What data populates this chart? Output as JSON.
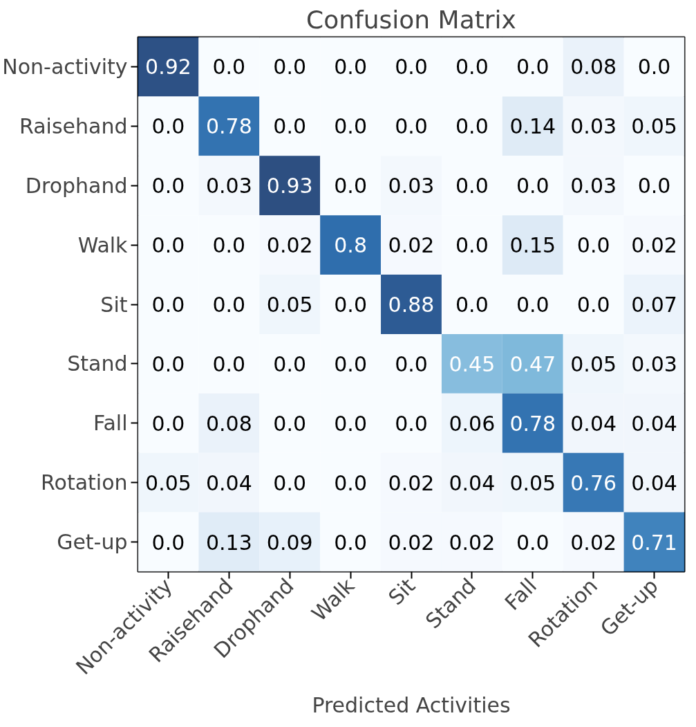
{
  "chart_data": {
    "type": "heatmap",
    "title": "Confusion Matrix",
    "xlabel": "Predicted Activities",
    "categories": [
      "Non-activity",
      "Raisehand",
      "Drophand",
      "Walk",
      "Sit",
      "Stand",
      "Fall",
      "Rotation",
      "Get-up"
    ],
    "y_categories": [
      "Non-activity",
      "Raisehand",
      "Drophand",
      "Walk",
      "Sit",
      "Stand",
      "Fall",
      "Rotation",
      "Get-up"
    ],
    "cells": [
      [
        0.92,
        0.0,
        0.0,
        0.0,
        0.0,
        0.0,
        0.0,
        0.08,
        0.0
      ],
      [
        0.0,
        0.78,
        0.0,
        0.0,
        0.0,
        0.0,
        0.14,
        0.03,
        0.05
      ],
      [
        0.0,
        0.03,
        0.93,
        0.0,
        0.03,
        0.0,
        0.0,
        0.03,
        0.0
      ],
      [
        0.0,
        0.0,
        0.02,
        0.8,
        0.02,
        0.0,
        0.15,
        0.0,
        0.02
      ],
      [
        0.0,
        0.0,
        0.05,
        0.0,
        0.88,
        0.0,
        0.0,
        0.0,
        0.07
      ],
      [
        0.0,
        0.0,
        0.0,
        0.0,
        0.0,
        0.45,
        0.47,
        0.05,
        0.03
      ],
      [
        0.0,
        0.08,
        0.0,
        0.0,
        0.0,
        0.06,
        0.78,
        0.04,
        0.04
      ],
      [
        0.05,
        0.04,
        0.0,
        0.0,
        0.02,
        0.04,
        0.05,
        0.76,
        0.04
      ],
      [
        0.0,
        0.13,
        0.09,
        0.0,
        0.02,
        0.02,
        0.0,
        0.02,
        0.71
      ]
    ],
    "cell_labels": [
      [
        "0.92",
        "0.0",
        "0.0",
        "0.0",
        "0.0",
        "0.0",
        "0.0",
        "0.08",
        "0.0"
      ],
      [
        "0.0",
        "0.78",
        "0.0",
        "0.0",
        "0.0",
        "0.0",
        "0.14",
        "0.03",
        "0.05"
      ],
      [
        "0.0",
        "0.03",
        "0.93",
        "0.0",
        "0.03",
        "0.0",
        "0.0",
        "0.03",
        "0.0"
      ],
      [
        "0.0",
        "0.0",
        "0.02",
        "0.8",
        "0.02",
        "0.0",
        "0.15",
        "0.0",
        "0.02"
      ],
      [
        "0.0",
        "0.0",
        "0.05",
        "0.0",
        "0.88",
        "0.0",
        "0.0",
        "0.0",
        "0.07"
      ],
      [
        "0.0",
        "0.0",
        "0.0",
        "0.0",
        "0.0",
        "0.45",
        "0.47",
        "0.05",
        "0.03"
      ],
      [
        "0.0",
        "0.08",
        "0.0",
        "0.0",
        "0.0",
        "0.06",
        "0.78",
        "0.04",
        "0.04"
      ],
      [
        "0.05",
        "0.04",
        "0.0",
        "0.0",
        "0.02",
        "0.04",
        "0.05",
        "0.76",
        "0.04"
      ],
      [
        "0.0",
        "0.13",
        "0.09",
        "0.0",
        "0.02",
        "0.02",
        "0.0",
        "0.02",
        "0.71"
      ]
    ]
  }
}
